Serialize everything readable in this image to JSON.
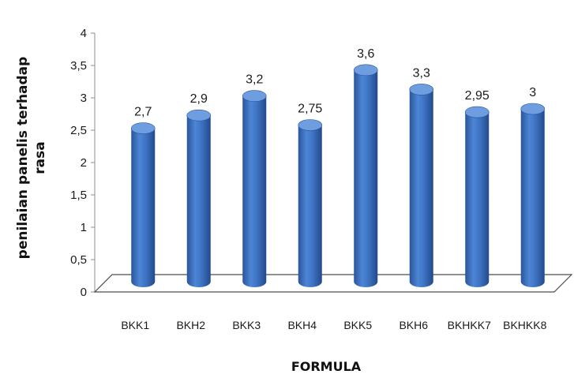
{
  "chart_data": {
    "type": "bar",
    "three_d": true,
    "categories": [
      "BKK1",
      "BKH2",
      "BKK3",
      "BKH4",
      "BKK5",
      "BKH6",
      "BKHKK7",
      "BKHKK8"
    ],
    "values": [
      2.7,
      2.9,
      3.2,
      2.75,
      3.6,
      3.3,
      2.95,
      3
    ],
    "data_labels": [
      "2,7",
      "2,9",
      "3,2",
      "2,75",
      "3,6",
      "3,3",
      "2,95",
      "3"
    ],
    "yticks": [
      0,
      0.5,
      1,
      1.5,
      2,
      2.5,
      3,
      3.5,
      4
    ],
    "ytick_labels": [
      "0",
      "0,5",
      "1",
      "1,5",
      "2",
      "2,5",
      "3",
      "3,5",
      "4"
    ],
    "ylim": [
      0,
      4
    ],
    "ylabel_lines": [
      "penilaian panelis terhadap",
      "rasa"
    ],
    "xlabel": "FORMULA",
    "title": "",
    "legend": false,
    "grid": false,
    "bar_color": "#3f74c4",
    "bar_top_color": "#6f9ee0",
    "bar_dark_color": "#2b56a0"
  }
}
